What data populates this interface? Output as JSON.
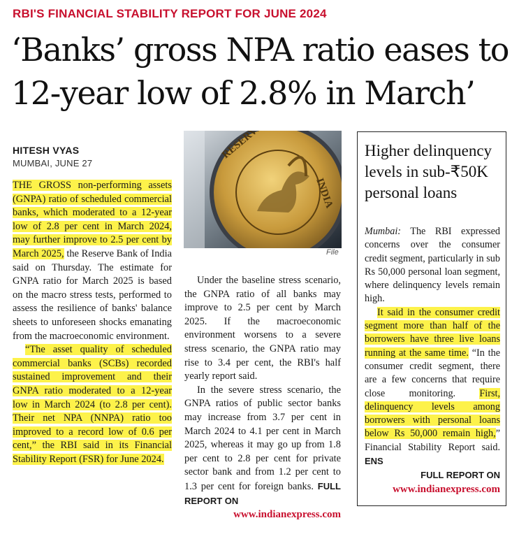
{
  "kicker": "RBI'S FINANCIAL STABILITY REPORT FOR JUNE 2024",
  "headline": "‘Banks’ gross NPA ratio eases to 12-year low of 2.8% in March’",
  "byline": {
    "author": "HITESH VYAS",
    "dateline": "MUMBAI, JUNE 27"
  },
  "photo": {
    "credit": "File",
    "seal_text": "RESERVE BANK OF INDIA"
  },
  "article": {
    "p1_highlight": "THE GROSS non-performing assets (GNPA) ratio of scheduled commercial banks, which moderated to a 12-year low of 2.8 per cent in March 2024, may further improve to 2.5 per cent by March 2025,",
    "p1_rest": " the Reserve Bank of India said on Thursday. The estimate for GNPA ratio for March 2025 is based on the macro stress tests, performed to assess the resilience of banks' balance sheets to unforeseen shocks emanating from the macroeconomic environment.",
    "p2_highlight": "“The asset quality of scheduled commercial banks (SCBs) recorded sustained improvement and their GNPA ratio moderated to a 12-year low in March 2024 (to 2.8 per cent). Their net NPA (NNPA) ratio too improved to a record low of 0.6 per cent,” the RBI said in its Financial Stability Report (FSR) for June 2024.",
    "p3": "Under the baseline stress scenario, the GNPA ratio of all banks may improve to 2.5 per cent by March 2025. If the macroeconomic environment worsens to a severe stress scenario, the GNPA ratio may rise to 3.4 per cent, the RBI's half yearly report said.",
    "p4": "In the severe stress scenario, the GNPA ratios of public sector banks may increase from 3.7 per cent in March 2024 to 4.1 per cent in March 2025, whereas it may go up from 1.8 per cent to 2.8 per cent for private sector bank and from 1.2 per cent to 1.3 per cent for foreign banks.",
    "full_report_label": "FULL REPORT ON",
    "url": "www.indianexpress.com"
  },
  "sidebar": {
    "title": "Higher delinquency levels in sub-₹50K personal loans",
    "dateline": "Mumbai:",
    "p1": " The RBI expressed concerns over the consumer credit segment, particularly in sub Rs 50,000 personal loan segment, where delinquency levels remain high.",
    "p2_highlight": "It said in the consumer credit segment more than half of the borrowers have three live loans running at the same time.",
    "p2_mid": " “In the consumer credit segment, there are a few concerns that require close monitoring. ",
    "p2_highlight2": "First, delinquency levels among borrowers with personal loans below Rs 50,000 remain high,",
    "p2_end": "” Financial Stability Report said.",
    "agency": "ENS",
    "full_report_label": "FULL REPORT ON",
    "url": "www.indianexpress.com"
  }
}
